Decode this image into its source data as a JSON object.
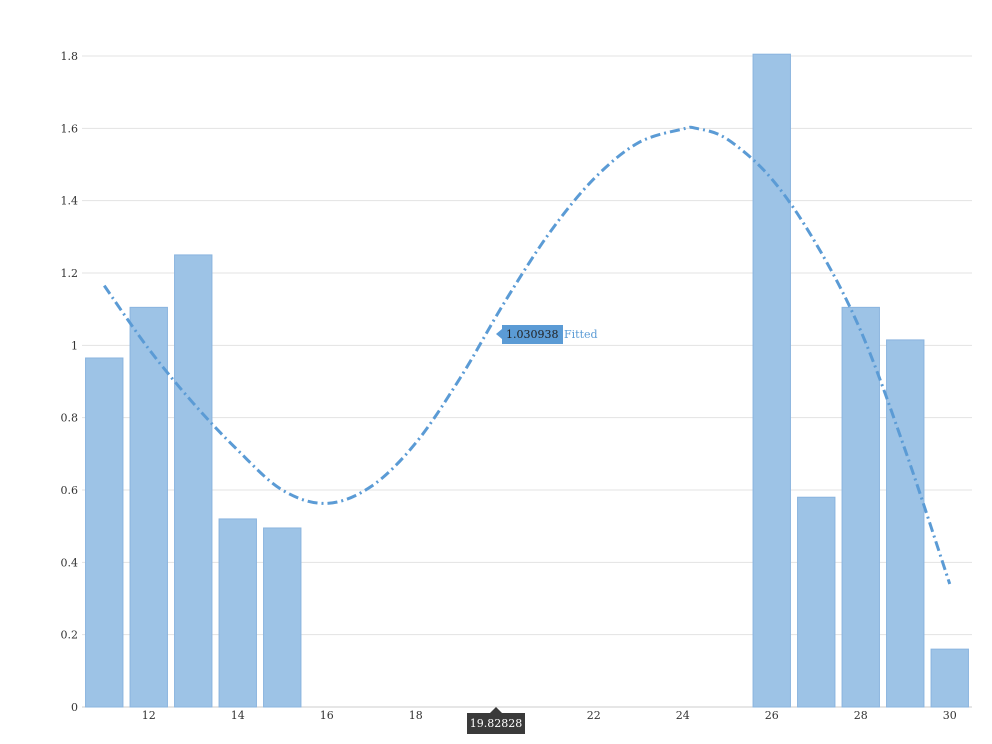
{
  "chart_data": {
    "type": "bar",
    "title": "",
    "xlabel": "",
    "ylabel": "",
    "xlim": [
      10.5,
      30.5
    ],
    "ylim": [
      0,
      1.8
    ],
    "x_ticks": [
      "12",
      "14",
      "16",
      "18",
      "22",
      "24",
      "26",
      "28",
      "30"
    ],
    "y_ticks": [
      "0",
      "0.2",
      "0.4",
      "0.6",
      "0.8",
      "1",
      "1.2",
      "1.4",
      "1.6",
      "1.8"
    ],
    "grid": true,
    "legend": "none",
    "bar_color": "#9dc3e6",
    "line_color": "#5b9bd5",
    "bars": {
      "x": [
        11,
        12,
        13,
        14,
        15,
        26,
        27,
        28,
        29,
        30
      ],
      "values": [
        0.965,
        1.105,
        1.25,
        0.52,
        0.495,
        1.805,
        0.58,
        1.105,
        1.015,
        0.16
      ]
    },
    "series": [
      {
        "name": "Fitted",
        "style": "dash-dot",
        "x": [
          11,
          12,
          13,
          14,
          15,
          16,
          17,
          18,
          19,
          20,
          21,
          22,
          23,
          24,
          24.3,
          25,
          26,
          27,
          28,
          29,
          30
        ],
        "values": [
          1.165,
          0.99,
          0.84,
          0.71,
          0.6,
          0.563,
          0.61,
          0.73,
          0.91,
          1.12,
          1.31,
          1.46,
          1.56,
          1.598,
          1.6,
          1.57,
          1.46,
          1.28,
          1.04,
          0.71,
          0.34
        ]
      }
    ]
  },
  "tooltip": {
    "x_value": "19.82828",
    "y_value": "1.030938",
    "series_name": "Fitted"
  }
}
